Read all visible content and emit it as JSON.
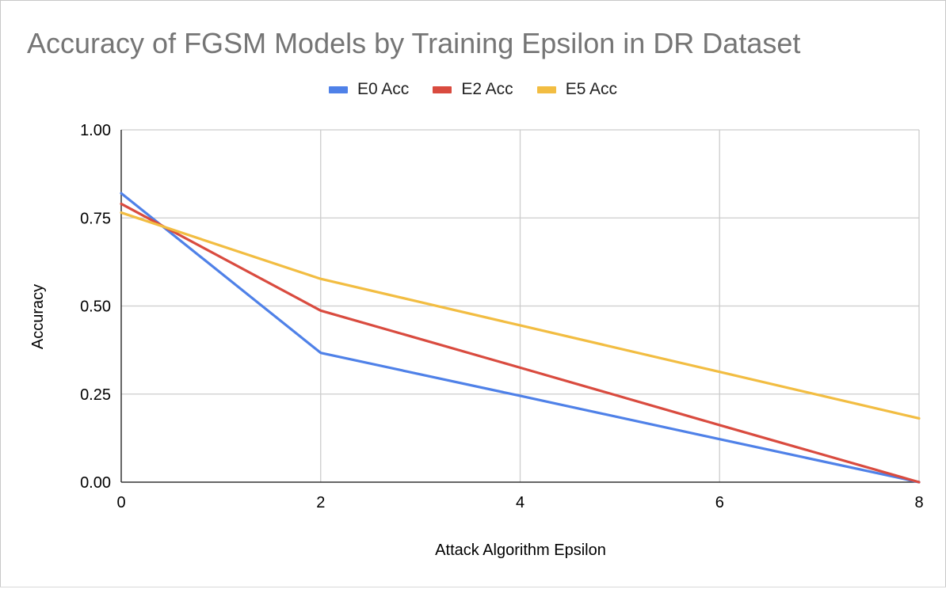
{
  "chart_data": {
    "type": "line",
    "title": "Accuracy of FGSM Models by Training Epsilon in DR Dataset",
    "xlabel": "Attack Algorithm Epsilon",
    "ylabel": "Accuracy",
    "x": [
      0,
      2,
      4,
      6,
      8
    ],
    "xlim": [
      0,
      8
    ],
    "ylim": [
      0,
      1
    ],
    "x_ticks": [
      "0",
      "2",
      "4",
      "6",
      "8"
    ],
    "y_ticks": [
      "0.00",
      "0.25",
      "0.50",
      "0.75",
      "1.00"
    ],
    "grid": true,
    "legend_position": "top",
    "series": [
      {
        "name": "E0 Acc",
        "color": "#4f81e8",
        "values": [
          0.82,
          0.367,
          0.245,
          0.122,
          0.0
        ]
      },
      {
        "name": "E2 Acc",
        "color": "#d94b3f",
        "values": [
          0.79,
          0.487,
          0.325,
          0.162,
          0.0
        ]
      },
      {
        "name": "E5 Acc",
        "color": "#f2bd42",
        "values": [
          0.765,
          0.577,
          0.445,
          0.313,
          0.181
        ]
      }
    ]
  }
}
